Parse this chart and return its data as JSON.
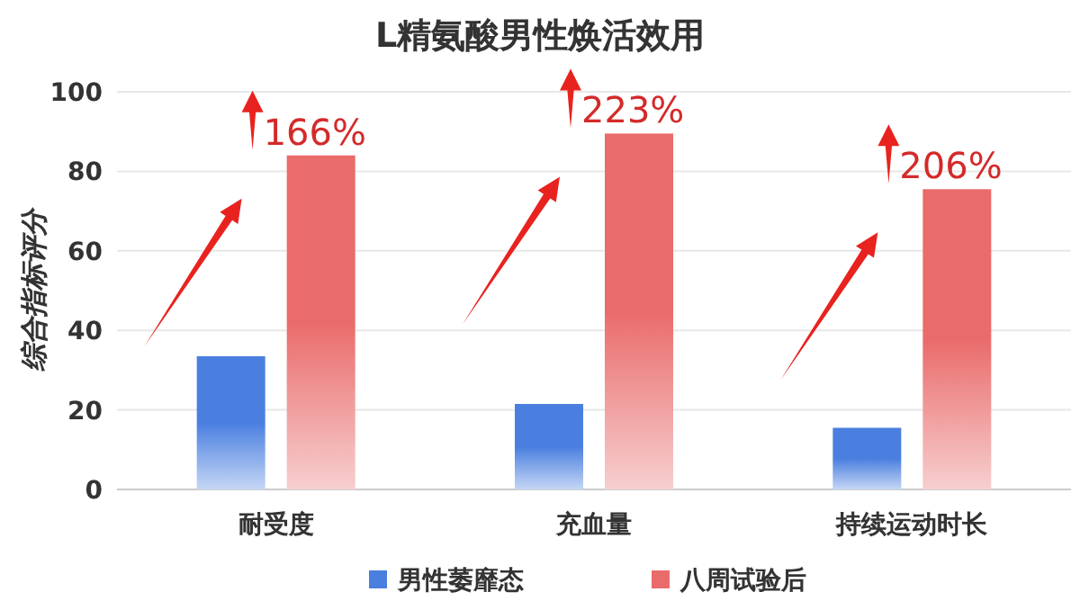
{
  "chart_data": {
    "type": "bar",
    "title": "L精氨酸男性焕活效用",
    "ylabel": "综合指标评分",
    "categories": [
      "耐受度",
      "充血量",
      "持续运动时长"
    ],
    "series": [
      {
        "name": "男性萎靡态",
        "color": "#4a7fe0",
        "values": [
          33.5,
          21.5,
          15.5
        ]
      },
      {
        "name": "八周试验后",
        "color": "#ea6b6b",
        "values": [
          84,
          89.5,
          75.5
        ]
      }
    ],
    "ylim": [
      0,
      100
    ],
    "yticks": [
      0,
      20,
      40,
      60,
      80,
      100
    ],
    "grid": "y",
    "legend": "bottom",
    "annotations": [
      "166%",
      "223%",
      "206%"
    ]
  }
}
